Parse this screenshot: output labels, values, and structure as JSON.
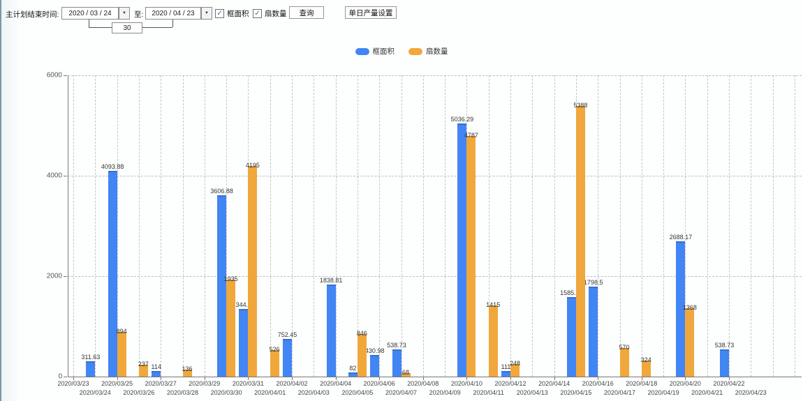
{
  "icons": {
    "dropdown": "▼",
    "check": "✓"
  },
  "toolbar": {
    "label_end_time": "主计划结束时间:",
    "date_from": "2020 / 03 / 24",
    "label_to": "至:",
    "date_to": "2020 / 04 / 23",
    "interval_days": "30",
    "checkbox_frame_area": "框面积",
    "frame_area_checked": true,
    "checkbox_fan_count": "扇数量",
    "fan_count_checked": true,
    "query_button": "查询",
    "daily_output_button": "单日产量设置"
  },
  "legend": {
    "items": [
      {
        "label": "框面积",
        "color": "#4285f4"
      },
      {
        "label": "扇数量",
        "color": "#f0a73c"
      }
    ]
  },
  "chart_data": {
    "type": "bar",
    "title": "",
    "xlabel": "",
    "ylabel": "",
    "ylim": [
      0,
      6000
    ],
    "yticks": [
      0,
      2000,
      4000,
      6000
    ],
    "grid": true,
    "legend_position": "top",
    "x_tick_label_rows": 2,
    "categories": [
      "2020/03/23",
      "2020/03/24",
      "2020/03/25",
      "2020/03/26",
      "2020/03/27",
      "2020/03/28",
      "2020/03/29",
      "2020/03/30",
      "2020/03/31",
      "2020/04/01",
      "2020/04/02",
      "2020/04/03",
      "2020/04/04",
      "2020/04/05",
      "2020/04/06",
      "2020/04/07",
      "2020/04/08",
      "2020/04/09",
      "2020/04/10",
      "2020/04/11",
      "2020/04/12",
      "2020/04/13",
      "2020/04/14",
      "2020/04/15",
      "2020/04/16",
      "2020/04/17",
      "2020/04/18",
      "2020/04/19",
      "2020/04/20",
      "2020/04/21",
      "2020/04/22",
      "2020/04/23"
    ],
    "series": [
      {
        "name": "框面积",
        "color": "#4285f4",
        "values": [
          null,
          311.63,
          4093.88,
          null,
          114,
          null,
          null,
          3606.88,
          1344.95,
          null,
          752.45,
          null,
          1838.81,
          82,
          430.98,
          538.73,
          null,
          null,
          5036.29,
          null,
          111,
          null,
          null,
          1585.96,
          1798.5,
          null,
          null,
          null,
          2688.17,
          null,
          538.73,
          null
        ]
      },
      {
        "name": "扇数量",
        "color": "#f0a73c",
        "values": [
          null,
          null,
          894,
          237,
          null,
          136,
          null,
          1935,
          4195,
          526,
          null,
          null,
          null,
          846,
          null,
          68,
          null,
          null,
          4787,
          1415,
          248,
          null,
          null,
          5388,
          null,
          570,
          324,
          null,
          1368,
          null,
          null,
          null
        ]
      }
    ]
  }
}
